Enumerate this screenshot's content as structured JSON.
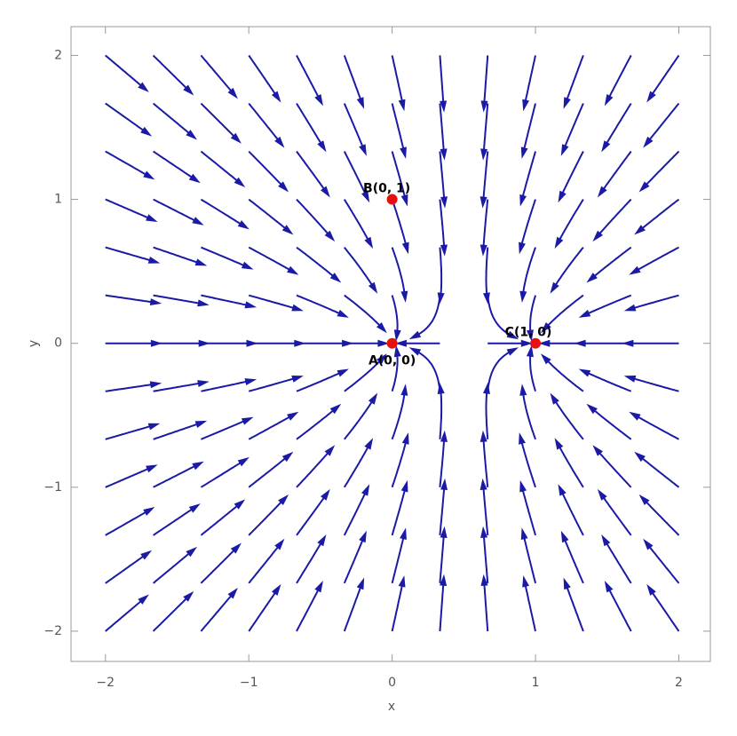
{
  "chart_data": {
    "type": "stream",
    "x_label": "x",
    "y_label": "y",
    "xlim": [
      -2.24,
      2.22
    ],
    "ylim": [
      -2.21,
      2.2
    ],
    "xticks": [
      {
        "value": -2,
        "label": "−2"
      },
      {
        "value": -1,
        "label": "−1"
      },
      0,
      1,
      2
    ],
    "yticks": [
      {
        "value": -2,
        "label": "−2"
      },
      {
        "value": -1,
        "label": "−1"
      },
      0,
      1,
      2
    ],
    "stream_color": "#1a1aa6",
    "points": {
      "x": [
        0,
        0,
        1
      ],
      "y": [
        0,
        1,
        0
      ],
      "labels": [
        "A(0, 0)",
        "B(0, 1)",
        "C(1, 0)"
      ],
      "color": "#e8100c"
    }
  }
}
